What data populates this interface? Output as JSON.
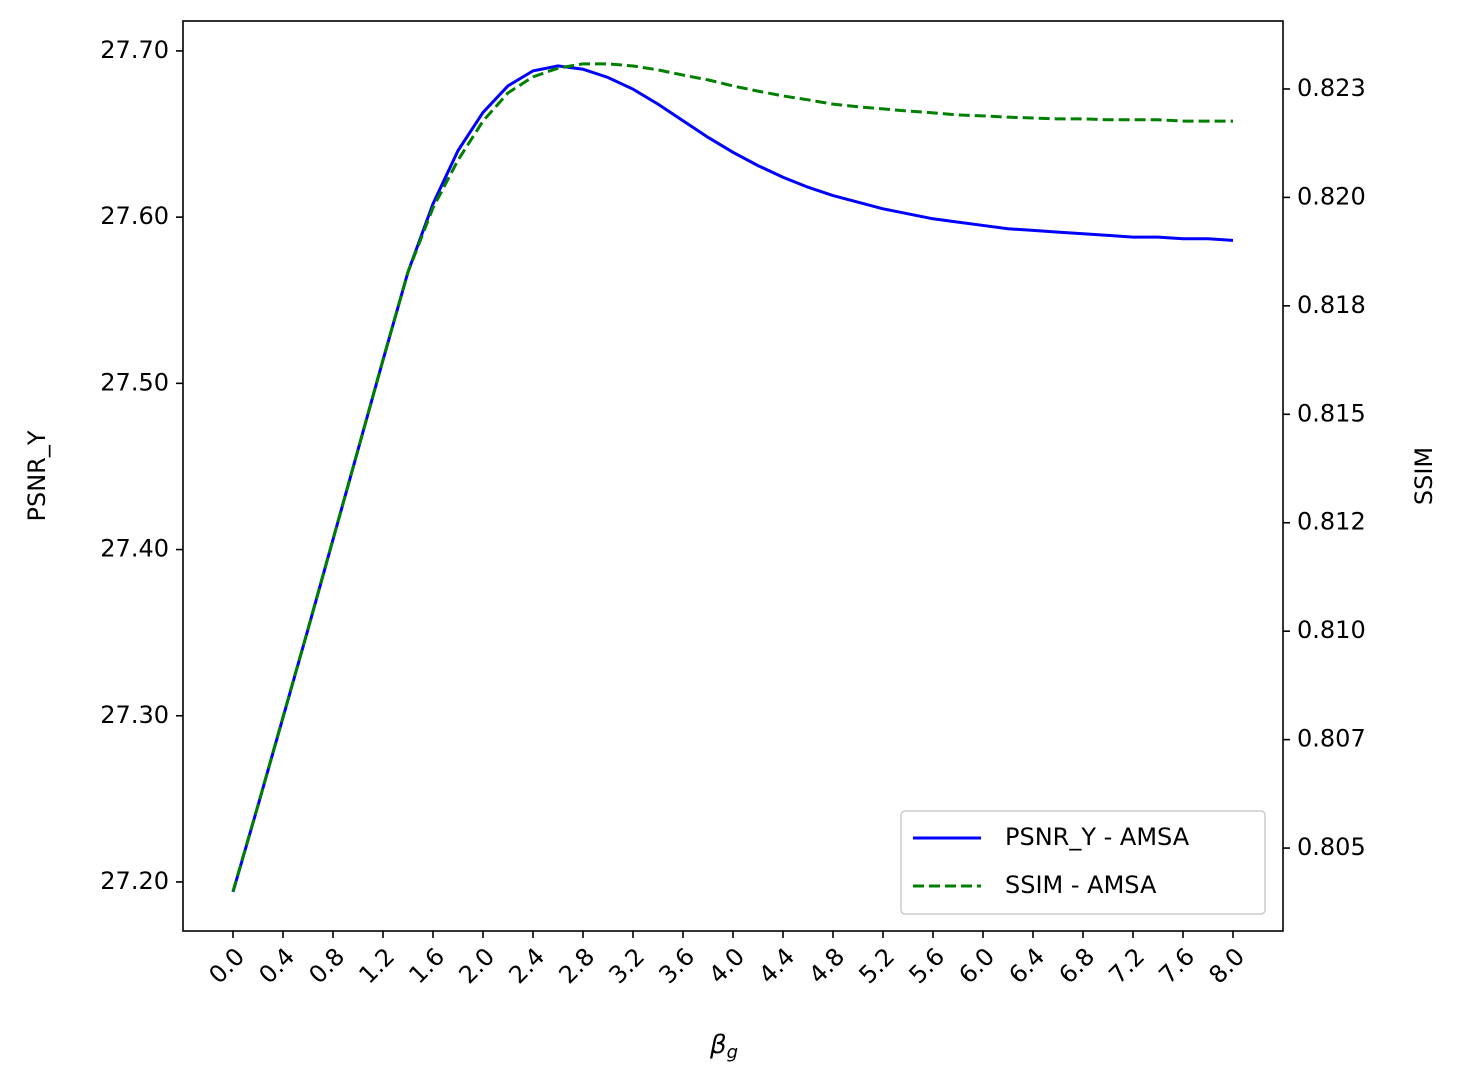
{
  "chart_data": {
    "type": "line",
    "xlabel": "β",
    "xlabel_subscript": "g",
    "ylabel": "PSNR_Y",
    "y2label": "SSIM",
    "x": [
      0.0,
      0.2,
      0.4,
      0.6,
      0.8,
      1.0,
      1.2,
      1.4,
      1.6,
      1.8,
      2.0,
      2.2,
      2.4,
      2.6,
      2.8,
      3.0,
      3.2,
      3.4,
      3.6,
      3.8,
      4.0,
      4.2,
      4.4,
      4.6,
      4.8,
      5.0,
      5.2,
      5.4,
      5.6,
      5.8,
      6.0,
      6.2,
      6.4,
      6.6,
      6.8,
      7.0,
      7.2,
      7.4,
      7.6,
      7.8,
      8.0
    ],
    "series": [
      {
        "name": "PSNR_Y - AMSA",
        "color": "#0000ff",
        "linestyle": "solid",
        "axis": "y",
        "values": [
          27.194,
          27.246,
          27.299,
          27.352,
          27.406,
          27.46,
          27.514,
          27.567,
          27.608,
          27.64,
          27.663,
          27.679,
          27.688,
          27.691,
          27.689,
          27.684,
          27.677,
          27.668,
          27.658,
          27.648,
          27.639,
          27.631,
          27.624,
          27.618,
          27.613,
          27.609,
          27.605,
          27.602,
          27.599,
          27.597,
          27.595,
          27.593,
          27.592,
          27.591,
          27.59,
          27.589,
          27.588,
          27.588,
          27.587,
          27.587,
          27.586
        ]
      },
      {
        "name": "SSIM - AMSA",
        "color": "#008000",
        "linestyle": "dashed",
        "axis": "y2",
        "values": [
          0.804,
          0.80599,
          0.80802,
          0.81005,
          0.81212,
          0.81418,
          0.81626,
          0.81828,
          0.81976,
          0.82086,
          0.82176,
          0.82241,
          0.82278,
          0.82298,
          0.82308,
          0.82308,
          0.82303,
          0.82294,
          0.82282,
          0.82271,
          0.82257,
          0.82245,
          0.82234,
          0.82225,
          0.82215,
          0.82209,
          0.82204,
          0.82199,
          0.82195,
          0.8219,
          0.82188,
          0.82185,
          0.82183,
          0.82181,
          0.82181,
          0.82179,
          0.82179,
          0.82179,
          0.82176,
          0.82176,
          0.82176
        ]
      }
    ],
    "xlim": [
      -0.4,
      8.4
    ],
    "xticks": [
      {
        "value": 0.0,
        "label": "0.0"
      },
      {
        "value": 0.4,
        "label": "0.4"
      },
      {
        "value": 0.8,
        "label": "0.8"
      },
      {
        "value": 1.2,
        "label": "1.2"
      },
      {
        "value": 1.6,
        "label": "1.6"
      },
      {
        "value": 2.0,
        "label": "2.0"
      },
      {
        "value": 2.4,
        "label": "2.4"
      },
      {
        "value": 2.8,
        "label": "2.8"
      },
      {
        "value": 3.2,
        "label": "3.2"
      },
      {
        "value": 3.6,
        "label": "3.6"
      },
      {
        "value": 4.0,
        "label": "4.0"
      },
      {
        "value": 4.4,
        "label": "4.4"
      },
      {
        "value": 4.8,
        "label": "4.8"
      },
      {
        "value": 5.2,
        "label": "5.2"
      },
      {
        "value": 5.6,
        "label": "5.6"
      },
      {
        "value": 6.0,
        "label": "6.0"
      },
      {
        "value": 6.4,
        "label": "6.4"
      },
      {
        "value": 6.8,
        "label": "6.8"
      },
      {
        "value": 7.2,
        "label": "7.2"
      },
      {
        "value": 7.6,
        "label": "7.6"
      },
      {
        "value": 8.0,
        "label": "8.0"
      }
    ],
    "ylim": [
      27.1705,
      27.718
    ],
    "yticks": [
      {
        "value": 27.2,
        "label": "27.20"
      },
      {
        "value": 27.3,
        "label": "27.30"
      },
      {
        "value": 27.4,
        "label": "27.40"
      },
      {
        "value": 27.5,
        "label": "27.50"
      },
      {
        "value": 27.6,
        "label": "27.60"
      },
      {
        "value": 27.7,
        "label": "27.70"
      }
    ],
    "y2lim": [
      0.803088,
      0.824067
    ],
    "y2ticks": [
      {
        "value": 0.805,
        "label": "0.805"
      },
      {
        "value": 0.8075,
        "label": "0.807"
      },
      {
        "value": 0.81,
        "label": "0.810"
      },
      {
        "value": 0.8125,
        "label": "0.812"
      },
      {
        "value": 0.815,
        "label": "0.815"
      },
      {
        "value": 0.8175,
        "label": "0.818"
      },
      {
        "value": 0.82,
        "label": "0.820"
      },
      {
        "value": 0.8225,
        "label": "0.823"
      }
    ],
    "grid": false,
    "legend": "lower right"
  }
}
